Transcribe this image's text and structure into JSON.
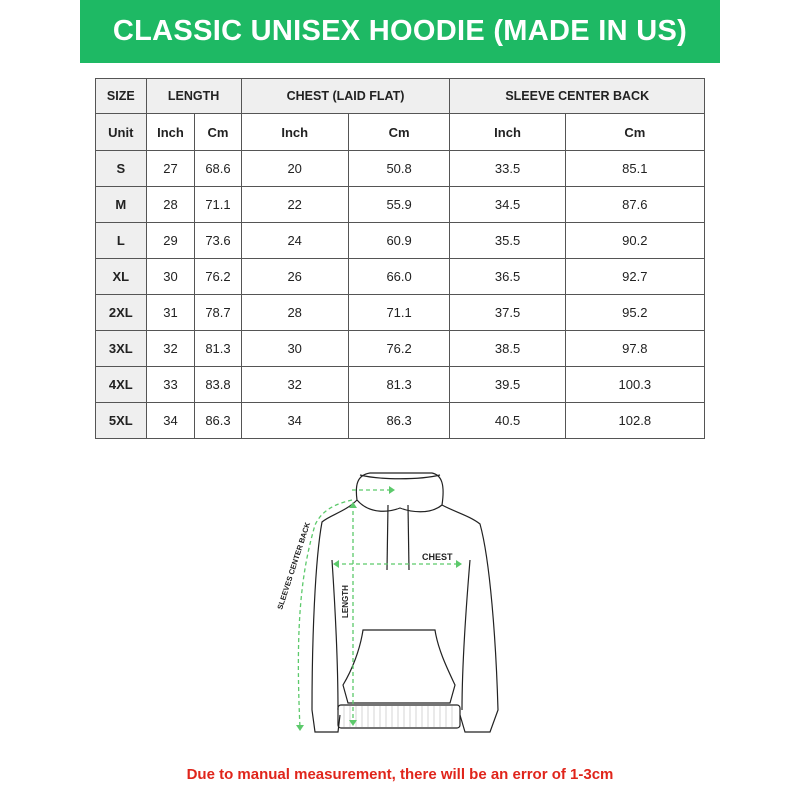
{
  "title": "CLASSIC UNISEX HOODIE (MADE IN US)",
  "table": {
    "headers": [
      "SIZE",
      "LENGTH",
      "CHEST (LAID FLAT)",
      "SLEEVE CENTER BACK"
    ],
    "units": [
      "Unit",
      "Inch",
      "Cm",
      "Inch",
      "Cm",
      "Inch",
      "Cm"
    ],
    "rows": [
      [
        "S",
        "27",
        "68.6",
        "20",
        "50.8",
        "33.5",
        "85.1"
      ],
      [
        "M",
        "28",
        "71.1",
        "22",
        "55.9",
        "34.5",
        "87.6"
      ],
      [
        "L",
        "29",
        "73.6",
        "24",
        "60.9",
        "35.5",
        "90.2"
      ],
      [
        "XL",
        "30",
        "76.2",
        "26",
        "66.0",
        "36.5",
        "92.7"
      ],
      [
        "2XL",
        "31",
        "78.7",
        "28",
        "71.1",
        "37.5",
        "95.2"
      ],
      [
        "3XL",
        "32",
        "81.3",
        "30",
        "76.2",
        "38.5",
        "97.8"
      ],
      [
        "4XL",
        "33",
        "83.8",
        "32",
        "81.3",
        "39.5",
        "100.3"
      ],
      [
        "5XL",
        "34",
        "86.3",
        "34",
        "86.3",
        "40.5",
        "102.8"
      ]
    ]
  },
  "diagram": {
    "chest_label": "CHEST",
    "length_label": "LENGTH",
    "sleeve_label": "SLEEVES CENTER BACK"
  },
  "note": "Due to manual measurement, there will be an error of 1-3cm",
  "colors": {
    "brand_green": "#1eb964",
    "measure_green": "#5cc96b",
    "note_red": "#e0251b"
  }
}
